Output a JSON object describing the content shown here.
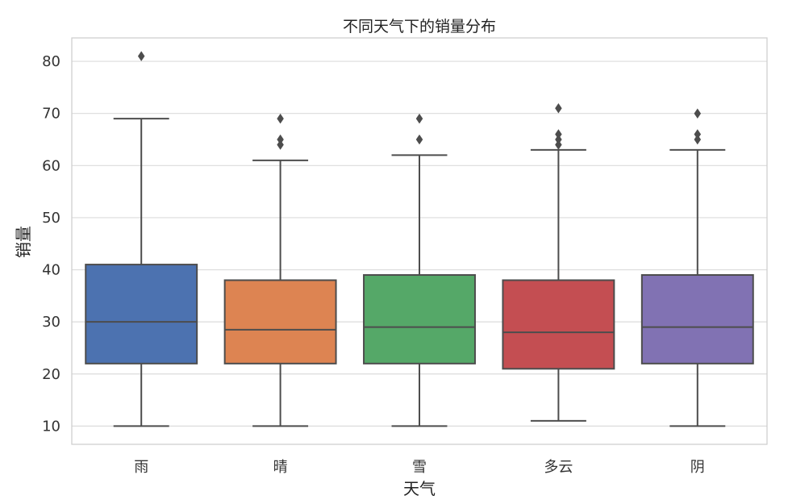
{
  "chart_data": {
    "type": "box",
    "title": "不同天气下的销量分布",
    "xlabel": "天气",
    "ylabel": "销量",
    "ylim": [
      6.5,
      84.5
    ],
    "yticks": [
      10,
      20,
      30,
      40,
      50,
      60,
      70,
      80
    ],
    "grid": "horizontal",
    "colors": [
      "#4c72b0",
      "#dd8452",
      "#55a868",
      "#c44e52",
      "#8172b3"
    ],
    "categories": [
      "雨",
      "晴",
      "雪",
      "多云",
      "阴"
    ],
    "boxes": [
      {
        "category": "雨",
        "whisker_low": 10,
        "q1": 22,
        "median": 30,
        "q3": 41,
        "whisker_high": 69,
        "outliers": [
          81
        ]
      },
      {
        "category": "晴",
        "whisker_low": 10,
        "q1": 22,
        "median": 28.5,
        "q3": 38,
        "whisker_high": 61,
        "outliers": [
          64,
          65,
          69
        ]
      },
      {
        "category": "雪",
        "whisker_low": 10,
        "q1": 22,
        "median": 29,
        "q3": 39,
        "whisker_high": 62,
        "outliers": [
          65,
          69
        ]
      },
      {
        "category": "多云",
        "whisker_low": 11,
        "q1": 21,
        "median": 28,
        "q3": 38,
        "whisker_high": 63,
        "outliers": [
          64,
          65,
          66,
          71
        ]
      },
      {
        "category": "阴",
        "whisker_low": 10,
        "q1": 22,
        "median": 29,
        "q3": 39,
        "whisker_high": 63,
        "outliers": [
          65,
          66,
          70
        ]
      }
    ]
  }
}
